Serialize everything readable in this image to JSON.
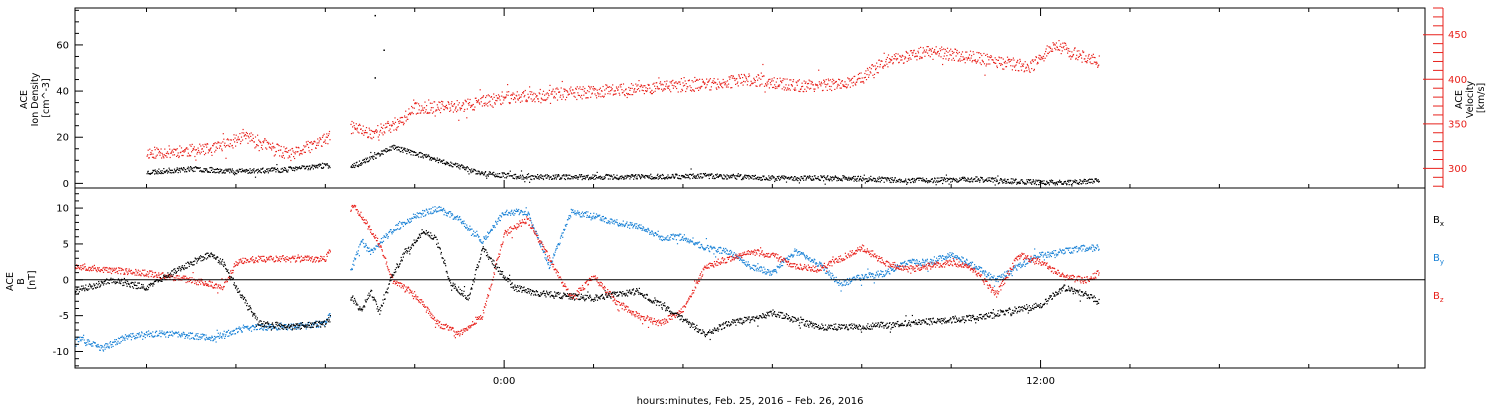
{
  "chart_data": [
    {
      "type": "scatter",
      "panel": "top",
      "left_axis": {
        "label_lines": [
          "ACE",
          "Ion Density",
          "[cm^-3]"
        ],
        "ticks": [
          0,
          20,
          40,
          60
        ],
        "ylim": [
          -2,
          76
        ],
        "color": "#000000"
      },
      "right_axis": {
        "label_lines": [
          "ACE",
          "Velocity",
          "[km/s]"
        ],
        "ticks": [
          300,
          350,
          400,
          450
        ],
        "ylim": [
          278,
          480
        ],
        "color": "#e8211b"
      },
      "series": [
        {
          "axis": "left",
          "color": "#000000",
          "x": [
            -8.0,
            -7.0,
            -6.0,
            -5.0,
            -4.0,
            -3.4,
            -3.0,
            -2.5,
            -1.0,
            -0.5,
            0.5,
            1.5,
            3.0,
            4.5,
            6.0,
            7.5,
            9.0,
            10.5,
            11.5,
            12.5,
            13.3
          ],
          "y": [
            5.0,
            6.5,
            5.5,
            6.0,
            8.0,
            7.5,
            11.0,
            16.0,
            7.5,
            4.5,
            3.0,
            3.0,
            3.0,
            3.5,
            2.5,
            2.5,
            1.5,
            2.0,
            1.0,
            0.5,
            1.5
          ],
          "outliers": [
            {
              "x": -2.9,
              "y": 73
            },
            {
              "x": -2.7,
              "y": 58
            },
            {
              "x": -2.9,
              "y": 46
            }
          ]
        },
        {
          "axis": "right",
          "color": "#e8211b",
          "x": [
            -8.0,
            -6.5,
            -5.8,
            -4.8,
            -3.4,
            -3.0,
            -2.4,
            -2.0,
            -1.0,
            0.0,
            1.5,
            3.0,
            4.5,
            5.5,
            6.5,
            7.5,
            8.0,
            8.5,
            9.5,
            10.5,
            11.0,
            11.8,
            12.3,
            12.8,
            13.3
          ],
          "y": [
            318,
            322,
            337,
            315,
            347,
            340,
            350,
            368,
            370,
            380,
            385,
            390,
            395,
            400,
            393,
            395,
            402,
            420,
            432,
            425,
            420,
            415,
            440,
            428,
            420
          ]
        }
      ]
    },
    {
      "type": "scatter",
      "panel": "bottom",
      "y_axis": {
        "label_lines": [
          "ACE",
          "B",
          "[nT]"
        ],
        "ticks": [
          -10,
          -5,
          0,
          5,
          10
        ],
        "ylim": [
          -12.3,
          12.8
        ]
      },
      "zero_line": 0,
      "series": [
        {
          "name": "Bx",
          "color": "#000000",
          "x": [
            -9.6,
            -8.8,
            -8.0,
            -7.0,
            -6.6,
            -6.3,
            -6.0,
            -5.5,
            -4.8,
            -4.0,
            -3.4,
            -3.2,
            -3.0,
            -2.8,
            -2.5,
            -2.2,
            -1.8,
            -1.5,
            -1.2,
            -0.8,
            -0.5,
            -0.2,
            0.2,
            0.5,
            1.0,
            2.0,
            3.0,
            4.0,
            4.5,
            5.0,
            5.5,
            6.0,
            6.5,
            7.0,
            8.0,
            9.0,
            10.0,
            10.8,
            11.5,
            12.0,
            12.5,
            13.0,
            13.3
          ],
          "y": [
            -1.5,
            0.0,
            -1.0,
            2.5,
            3.5,
            2.5,
            -1.0,
            -6.0,
            -6.5,
            -6.0,
            -2.5,
            -4.5,
            -1.5,
            -4.5,
            1.0,
            4.0,
            7.0,
            5.5,
            -0.5,
            -2.5,
            4.5,
            2.0,
            -1.0,
            -1.5,
            -2.0,
            -2.5,
            -1.5,
            -5.5,
            -7.5,
            -6.0,
            -5.5,
            -4.5,
            -5.5,
            -6.5,
            -6.5,
            -6.0,
            -5.5,
            -5.0,
            -4.0,
            -3.5,
            -1.0,
            -2.0,
            -3.0
          ]
        },
        {
          "name": "By",
          "color": "#1a82d6",
          "x": [
            -9.6,
            -9.0,
            -8.5,
            -8.0,
            -7.5,
            -6.5,
            -6.0,
            -5.5,
            -4.8,
            -4.0,
            -3.4,
            -3.2,
            -3.0,
            -2.5,
            -2.0,
            -1.5,
            -1.0,
            -0.5,
            0.0,
            0.5,
            1.0,
            1.5,
            2.0,
            2.5,
            3.0,
            3.5,
            4.0,
            4.5,
            5.0,
            5.5,
            6.0,
            6.5,
            7.0,
            7.5,
            8.0,
            8.5,
            9.0,
            9.5,
            10.0,
            10.5,
            11.0,
            11.5,
            12.0,
            12.5,
            13.0,
            13.3
          ],
          "y": [
            -8.0,
            -9.5,
            -8.0,
            -7.5,
            -7.5,
            -8.0,
            -7.0,
            -6.5,
            -6.5,
            -6.0,
            2.0,
            5.5,
            4.0,
            7.0,
            9.0,
            10.0,
            8.5,
            5.5,
            9.5,
            9.5,
            2.0,
            9.5,
            9.0,
            8.0,
            7.5,
            6.0,
            6.0,
            4.5,
            4.0,
            2.0,
            1.0,
            4.0,
            2.5,
            -0.5,
            0.5,
            1.0,
            2.5,
            2.5,
            3.5,
            2.0,
            0.0,
            2.0,
            3.5,
            4.0,
            4.5,
            4.5
          ]
        },
        {
          "name": "Bz",
          "color": "#e8211b",
          "x": [
            -9.6,
            -9.0,
            -8.0,
            -7.0,
            -6.6,
            -6.3,
            -6.0,
            -5.5,
            -4.8,
            -4.0,
            -3.4,
            -3.2,
            -2.8,
            -2.5,
            -2.0,
            -1.5,
            -1.0,
            -0.5,
            0.0,
            0.5,
            1.0,
            1.5,
            2.0,
            2.5,
            3.0,
            3.5,
            4.0,
            4.5,
            5.0,
            5.5,
            6.0,
            6.5,
            7.0,
            7.5,
            8.0,
            8.5,
            9.0,
            9.5,
            10.0,
            10.5,
            11.0,
            11.5,
            12.0,
            12.5,
            13.0,
            13.3
          ],
          "y": [
            2.0,
            1.5,
            1.0,
            0.0,
            -0.5,
            -1.0,
            2.5,
            3.0,
            3.0,
            3.0,
            10.5,
            9.0,
            5.0,
            0.0,
            -2.0,
            -6.0,
            -7.5,
            -5.0,
            6.5,
            8.5,
            3.0,
            -2.5,
            0.5,
            -3.0,
            -5.0,
            -6.0,
            -4.0,
            2.0,
            3.0,
            4.0,
            3.5,
            2.0,
            1.5,
            3.0,
            4.5,
            2.5,
            1.5,
            2.0,
            2.5,
            1.5,
            -2.0,
            3.5,
            2.5,
            0.5,
            0.0,
            1.0
          ]
        }
      ],
      "legend": [
        {
          "label": "B",
          "sub": "x",
          "color": "#000000"
        },
        {
          "label": "B",
          "sub": "y",
          "color": "#1a82d6"
        },
        {
          "label": "B",
          "sub": "z",
          "color": "#e8211b"
        }
      ]
    }
  ],
  "x_axis": {
    "xlim": [
      -9.6,
      20.6
    ],
    "tick_labels": [
      {
        "x": 0,
        "label": "0:00"
      },
      {
        "x": 12,
        "label": "12:00"
      }
    ],
    "minor_step": 2,
    "label": "hours:minutes, Feb. 25, 2016 – Feb. 26, 2016"
  }
}
